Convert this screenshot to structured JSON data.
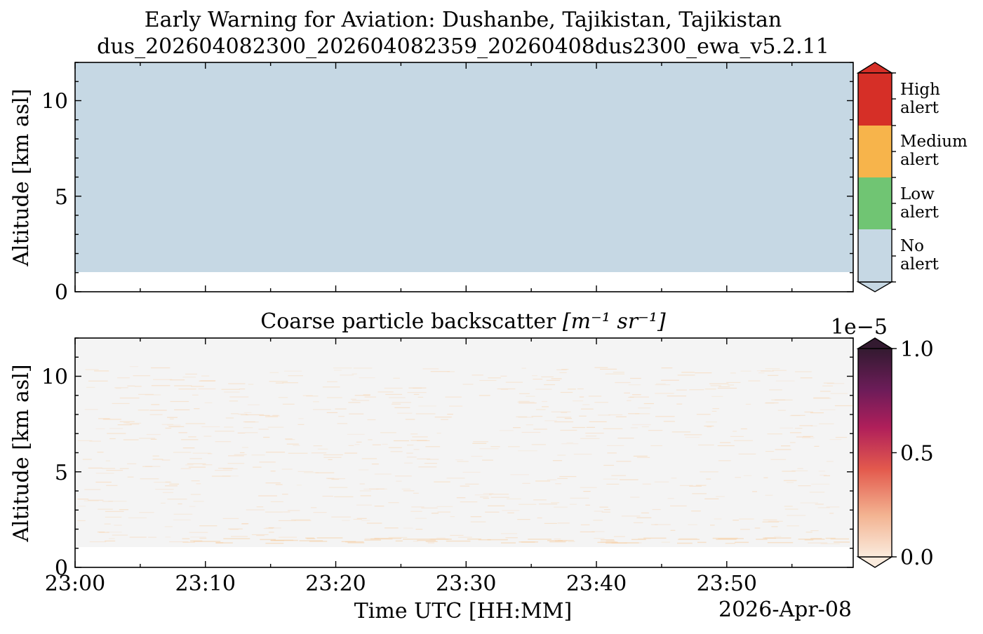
{
  "figure": {
    "title_line1": "Early Warning for Aviation: Dushanbe, Tajikistan, Tajikistan",
    "title_line2": "dus_202604082300_202604082359_20260408dus2300_ewa_v5.2.11"
  },
  "chart_data": [
    {
      "type": "heatmap",
      "title": "",
      "xlabel": "",
      "ylabel": "Altitude [km asl]",
      "x_range": [
        "23:00",
        "23:59"
      ],
      "ylim": [
        0,
        12
      ],
      "yticks": [
        0,
        5,
        10
      ],
      "data_bottom_km": 1.0,
      "classes": [
        {
          "label_line1": "No",
          "label_line2": "alert",
          "color": "#c6d8e4"
        },
        {
          "label_line1": "Low",
          "label_line2": "alert",
          "color": "#70c573"
        },
        {
          "label_line1": "Medium",
          "label_line2": "alert",
          "color": "#f7b44b"
        },
        {
          "label_line1": "High",
          "label_line2": "alert",
          "color": "#d62f27"
        }
      ],
      "field_value": "No alert"
    },
    {
      "type": "heatmap",
      "title": "Coarse particle backscatter",
      "title_unit": "[m⁻¹ sr⁻¹]",
      "xlabel": "Time UTC [HH:MM]",
      "ylabel": "Altitude [km asl]",
      "xticks": [
        "23:00",
        "23:10",
        "23:20",
        "23:30",
        "23:40",
        "23:50"
      ],
      "xtick_minutes": [
        0,
        10,
        20,
        30,
        40,
        50
      ],
      "x_range_minutes": [
        0,
        59.7
      ],
      "date_label": "2026-Apr-08",
      "ylim": [
        0,
        12
      ],
      "yticks": [
        0,
        5,
        10
      ],
      "data_bottom_km": 1.0,
      "colorbar": {
        "scale_label": "1e−5",
        "vmin": 0.0,
        "vmax": 1.0,
        "ticks": [
          "0.0",
          "0.5",
          "1.0"
        ],
        "colormap": "rocket_r"
      },
      "background_value": 0.0
    }
  ]
}
